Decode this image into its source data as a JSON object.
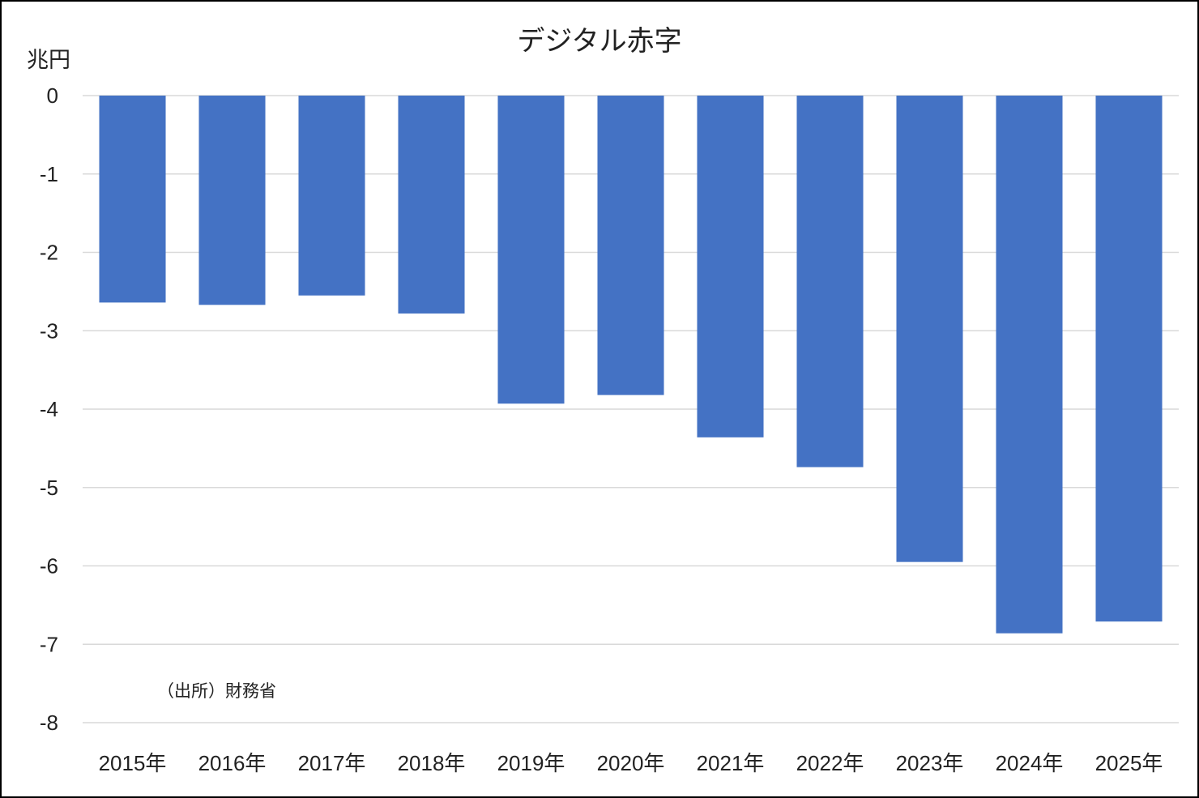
{
  "colors": {
    "bar": "#4472c4",
    "grid": "#d9d9d9",
    "text": "#222222"
  },
  "source_note": "（出所）財務省",
  "chart_data": {
    "type": "bar",
    "title": "デジタル赤字",
    "ylabel": "兆円",
    "xlabel": "",
    "ylim": [
      -8,
      0
    ],
    "yticks": [
      0,
      -1,
      -2,
      -3,
      -4,
      -5,
      -6,
      -7,
      -8
    ],
    "grid": true,
    "legend": "none",
    "categories": [
      "2015年",
      "2016年",
      "2017年",
      "2018年",
      "2019年",
      "2020年",
      "2021年",
      "2022年",
      "2023年",
      "2024年",
      "2025年"
    ],
    "values": [
      -2.64,
      -2.67,
      -2.55,
      -2.78,
      -3.93,
      -3.82,
      -4.36,
      -4.74,
      -5.95,
      -6.86,
      -6.71
    ]
  }
}
